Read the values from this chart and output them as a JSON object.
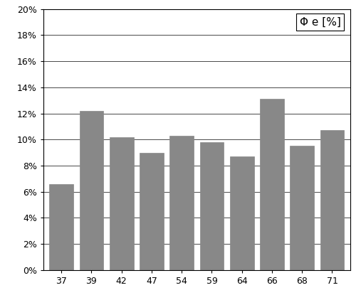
{
  "categories": [
    "37",
    "39",
    "42",
    "47",
    "54",
    "59",
    "64",
    "66",
    "68",
    "71"
  ],
  "values": [
    0.066,
    0.122,
    0.102,
    0.09,
    0.103,
    0.098,
    0.087,
    0.131,
    0.095,
    0.107
  ],
  "bar_color": "#888888",
  "bar_edge_color": "#888888",
  "ylim": [
    0,
    0.2
  ],
  "yticks": [
    0.0,
    0.02,
    0.04,
    0.06,
    0.08,
    0.1,
    0.12,
    0.14,
    0.16,
    0.18,
    0.2
  ],
  "legend_label": "Φ e [%]",
  "background_color": "#ffffff",
  "grid_color": "#000000",
  "spine_color": "#000000"
}
